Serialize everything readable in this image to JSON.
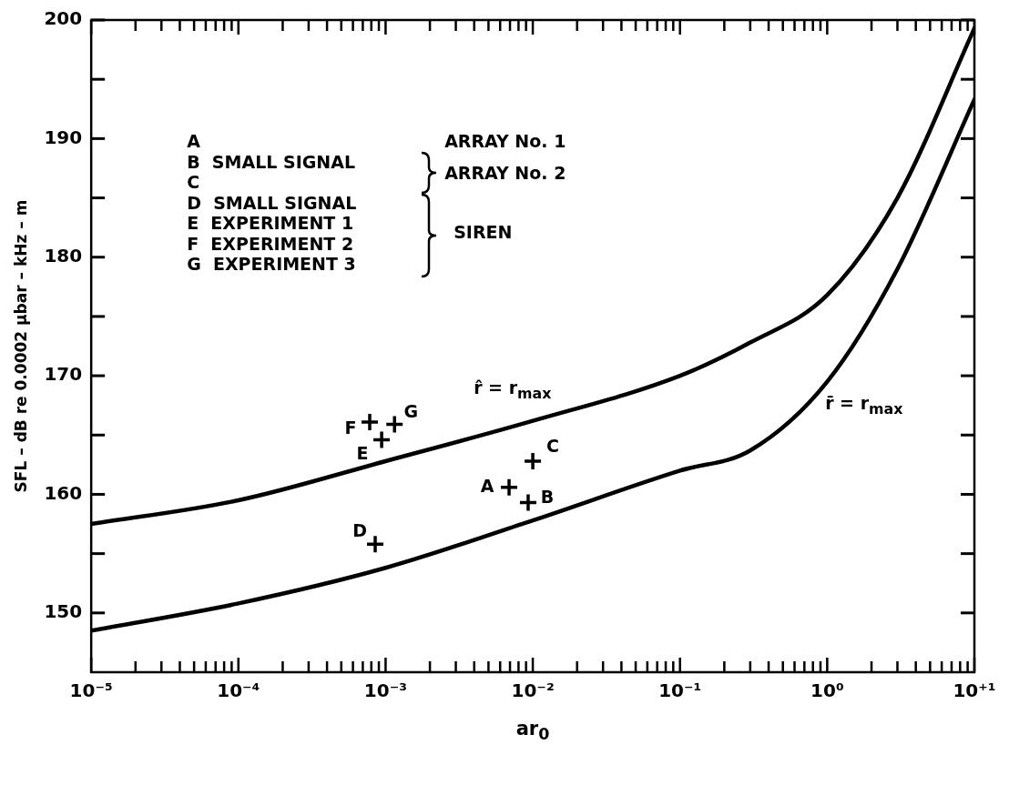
{
  "chart_data": {
    "type": "line",
    "xlabel": "ar$_{0}$",
    "ylabel": "SFL – dB re 0.0002 μbar – kHz – m",
    "log": "x",
    "grid": false,
    "xlim": [
      1e-05,
      10
    ],
    "ylim": [
      145,
      200
    ],
    "xticks": [
      {
        "value": 1e-05,
        "label": "10⁻⁵"
      },
      {
        "value": 2e-05,
        "label": null
      },
      {
        "value": 3e-05,
        "label": null
      },
      {
        "value": 4e-05,
        "label": null
      },
      {
        "value": 5e-05,
        "label": null
      },
      {
        "value": 6e-05,
        "label": null
      },
      {
        "value": 7e-05,
        "label": null
      },
      {
        "value": 8e-05,
        "label": null
      },
      {
        "value": 9e-05,
        "label": null
      },
      {
        "value": 0.0001,
        "label": "10⁻⁴"
      },
      {
        "value": 0.0002,
        "label": null
      },
      {
        "value": 0.0003,
        "label": null
      },
      {
        "value": 0.0004,
        "label": null
      },
      {
        "value": 0.0005,
        "label": null
      },
      {
        "value": 0.0006,
        "label": null
      },
      {
        "value": 0.0007,
        "label": null
      },
      {
        "value": 0.0008,
        "label": null
      },
      {
        "value": 0.0009,
        "label": null
      },
      {
        "value": 0.001,
        "label": "10⁻³"
      },
      {
        "value": 0.002,
        "label": null
      },
      {
        "value": 0.003,
        "label": null
      },
      {
        "value": 0.004,
        "label": null
      },
      {
        "value": 0.005,
        "label": null
      },
      {
        "value": 0.006,
        "label": null
      },
      {
        "value": 0.007,
        "label": null
      },
      {
        "value": 0.008,
        "label": null
      },
      {
        "value": 0.009,
        "label": null
      },
      {
        "value": 0.01,
        "label": "10⁻²"
      },
      {
        "value": 0.02,
        "label": null
      },
      {
        "value": 0.03,
        "label": null
      },
      {
        "value": 0.04,
        "label": null
      },
      {
        "value": 0.05,
        "label": null
      },
      {
        "value": 0.06,
        "label": null
      },
      {
        "value": 0.07,
        "label": null
      },
      {
        "value": 0.08,
        "label": null
      },
      {
        "value": 0.09,
        "label": null
      },
      {
        "value": 0.1,
        "label": "10⁻¹"
      },
      {
        "value": 0.2,
        "label": null
      },
      {
        "value": 0.3,
        "label": null
      },
      {
        "value": 0.4,
        "label": null
      },
      {
        "value": 0.5,
        "label": null
      },
      {
        "value": 0.6,
        "label": null
      },
      {
        "value": 0.7,
        "label": null
      },
      {
        "value": 0.8,
        "label": null
      },
      {
        "value": 0.9,
        "label": null
      },
      {
        "value": 1,
        "label": "10⁰"
      },
      {
        "value": 2,
        "label": null
      },
      {
        "value": 3,
        "label": null
      },
      {
        "value": 4,
        "label": null
      },
      {
        "value": 5,
        "label": null
      },
      {
        "value": 6,
        "label": null
      },
      {
        "value": 7,
        "label": null
      },
      {
        "value": 8,
        "label": null
      },
      {
        "value": 9,
        "label": null
      },
      {
        "value": 10,
        "label": "10⁺¹"
      }
    ],
    "yticks": [
      150,
      {
        "value": 155,
        "label": null
      },
      160,
      {
        "value": 165,
        "label": null
      },
      170,
      {
        "value": 175,
        "label": null
      },
      180,
      {
        "value": 185,
        "label": null
      },
      190,
      {
        "value": 195,
        "label": null
      },
      200
    ],
    "series": [
      {
        "type": "line",
        "color": "#000000",
        "line_style": "solid",
        "x": [
          1e-05,
          0.0001,
          0.001,
          0.01,
          0.1,
          0.3,
          1,
          3,
          10
        ],
        "values": [
          157.5,
          159.5,
          162.8,
          166.2,
          170,
          172.8,
          176.8,
          185,
          199.3
        ]
      },
      {
        "type": "line",
        "color": "#000000",
        "line_style": "solid",
        "x": [
          1e-05,
          0.0001,
          0.001,
          0.01,
          0.1,
          0.3,
          1,
          3,
          10
        ],
        "values": [
          148.5,
          150.8,
          153.8,
          157.8,
          162,
          163.7,
          169.5,
          179,
          193.3
        ]
      },
      {
        "type": "scatter",
        "color": "#000000",
        "marker": "cross",
        "x": [
          0.0069,
          0.0093,
          0.01,
          0.00085,
          0.00094,
          0.00078,
          0.00115
        ],
        "values": [
          160.6,
          159.3,
          162.8,
          155.8,
          164.6,
          166.1,
          165.9
        ]
      }
    ],
    "annotations": [
      "A",
      "B",
      "C",
      "D",
      "E",
      "F",
      "G",
      "r̂ = r$_{max}$",
      "r̄ = r$_{max}$",
      "A",
      "B  SMALL SIGNAL",
      "C",
      "D  SMALL SIGNAL",
      "E  EXPERIMENT 1",
      "F  EXPERIMENT 2",
      "G  EXPERIMENT 3",
      "ARRAY No. 1",
      "ARRAY No. 2",
      "SIREN"
    ]
  }
}
